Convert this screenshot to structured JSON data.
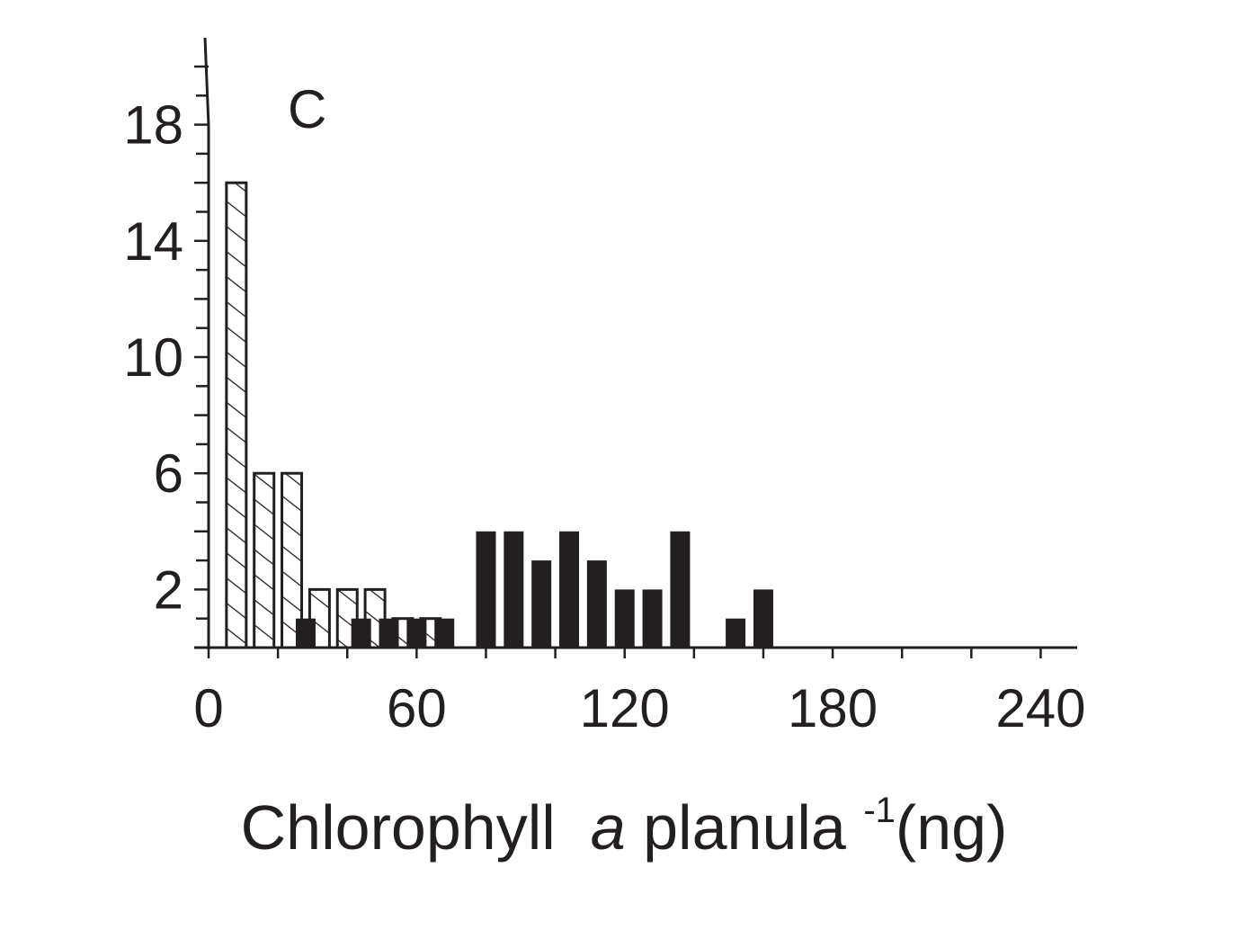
{
  "chart_data": {
    "type": "bar",
    "panel_label": "C",
    "xlabel": {
      "prefix": "Chlorophyll",
      "italic": "a",
      "unit": "planula",
      "exponent": "-1",
      "suffix": "(ng)"
    },
    "ylabel": "",
    "xlim": [
      0,
      250
    ],
    "ylim": [
      0,
      20
    ],
    "x_ticks": [
      0,
      60,
      120,
      180,
      240
    ],
    "y_ticks": [
      2,
      6,
      10,
      14,
      18
    ],
    "x_tick_labels": [
      "0",
      "60",
      "120",
      "180",
      "240"
    ],
    "y_tick_labels": [
      "2",
      "6",
      "10",
      "14",
      "18"
    ],
    "grid": false,
    "series": [
      {
        "pattern": "hatched",
        "color": "#ffffff",
        "bars": [
          {
            "x": 8,
            "value": 16
          },
          {
            "x": 16,
            "value": 6
          },
          {
            "x": 24,
            "value": 6
          },
          {
            "x": 32,
            "value": 2
          },
          {
            "x": 40,
            "value": 2
          },
          {
            "x": 48,
            "value": 2
          },
          {
            "x": 56,
            "value": 1
          },
          {
            "x": 64,
            "value": 1
          }
        ]
      },
      {
        "pattern": "solid",
        "color": "#231f20",
        "bars": [
          {
            "x": 28,
            "value": 1
          },
          {
            "x": 44,
            "value": 1
          },
          {
            "x": 52,
            "value": 1
          },
          {
            "x": 60,
            "value": 1
          },
          {
            "x": 68,
            "value": 1
          },
          {
            "x": 80,
            "value": 4
          },
          {
            "x": 88,
            "value": 4
          },
          {
            "x": 96,
            "value": 3
          },
          {
            "x": 104,
            "value": 4
          },
          {
            "x": 112,
            "value": 3
          },
          {
            "x": 120,
            "value": 2
          },
          {
            "x": 128,
            "value": 2
          },
          {
            "x": 136,
            "value": 4
          },
          {
            "x": 152,
            "value": 1
          },
          {
            "x": 160,
            "value": 2
          }
        ]
      }
    ]
  }
}
